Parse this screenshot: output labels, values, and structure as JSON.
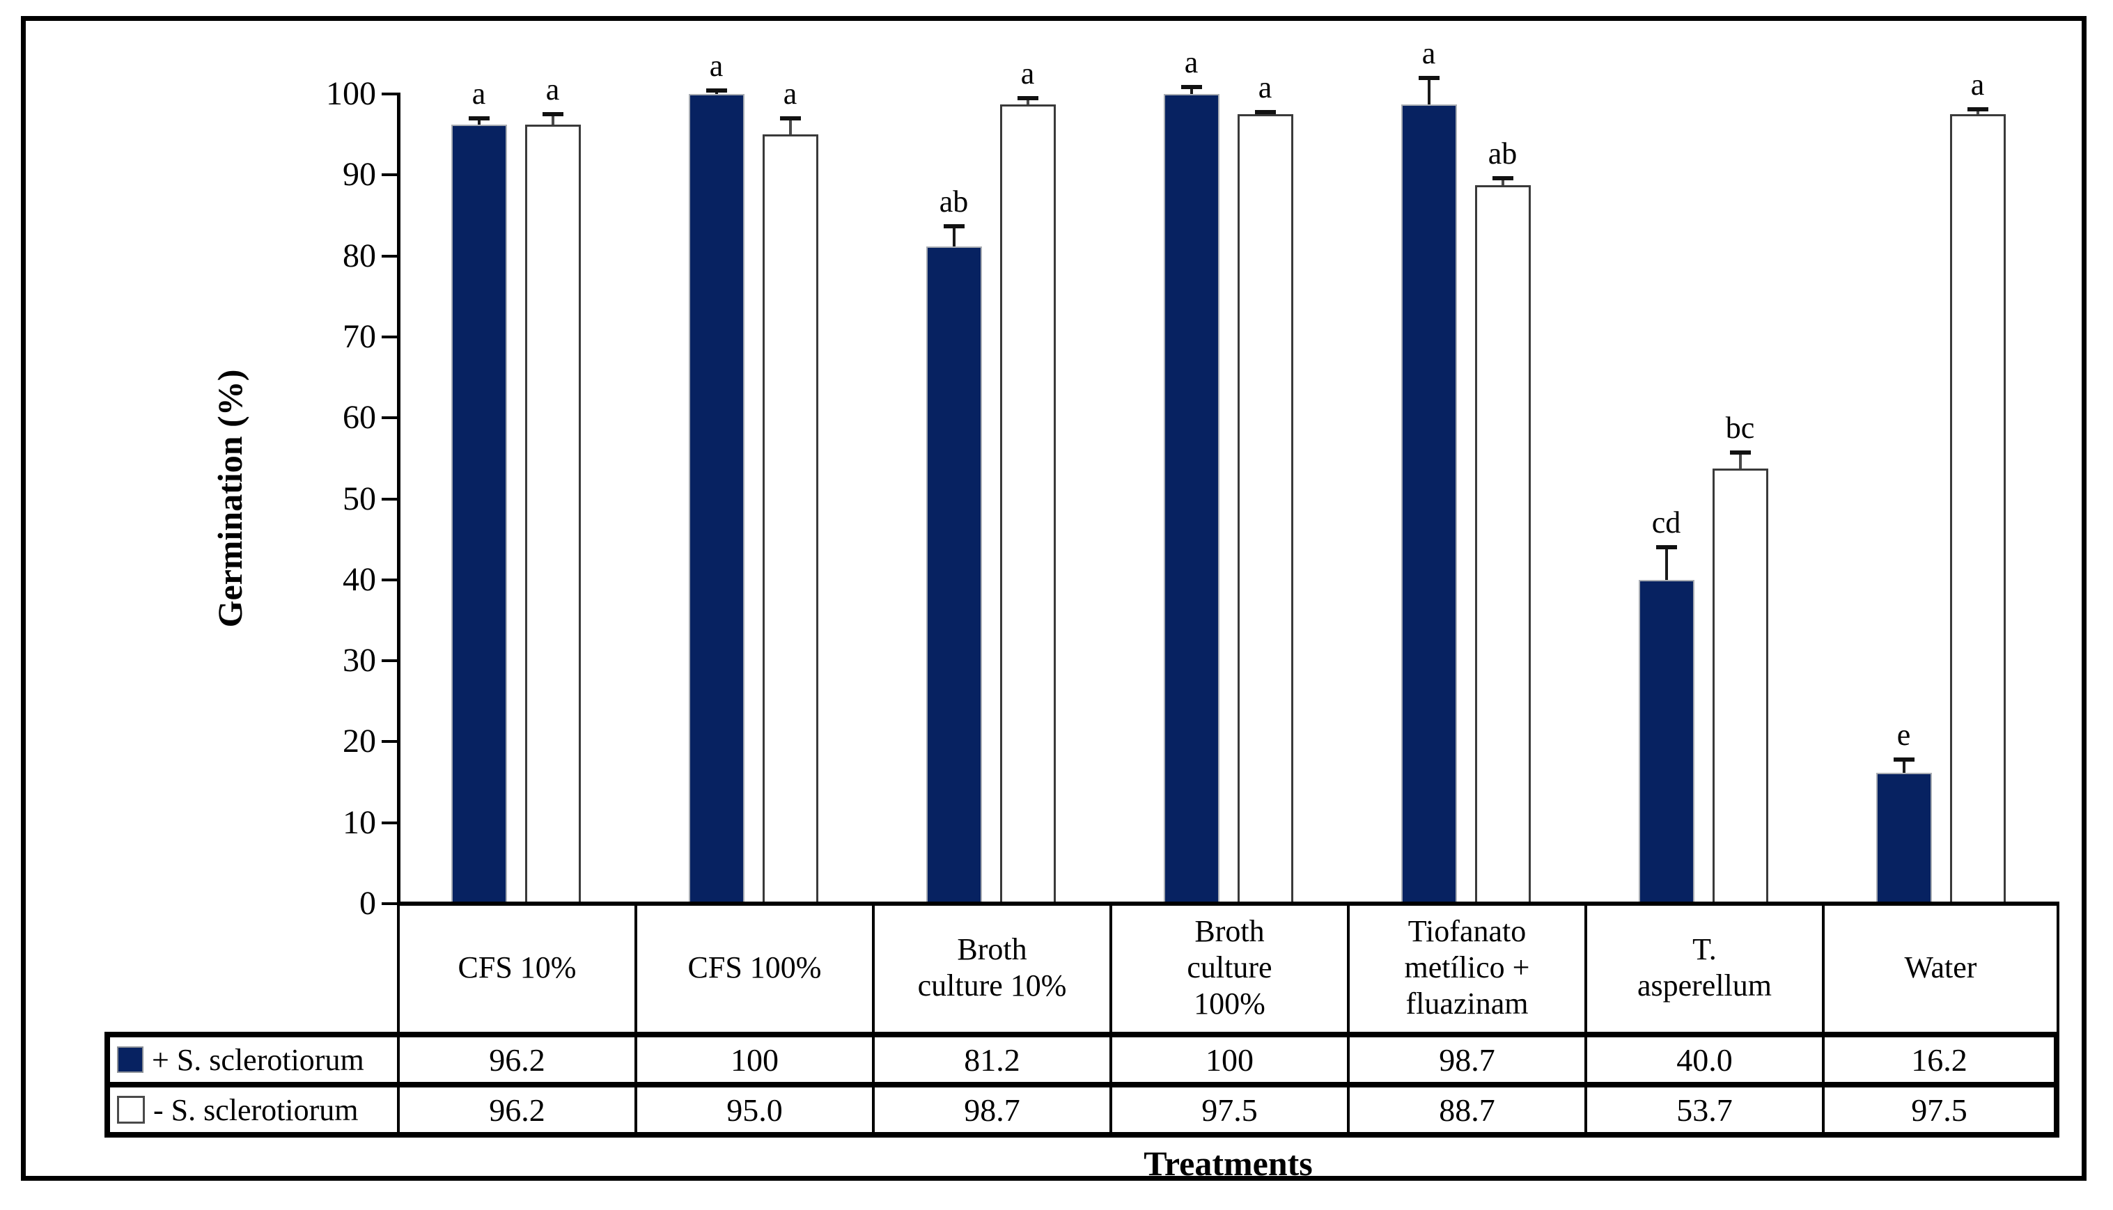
{
  "figure": {
    "background": "#ffffff",
    "frame_color": "#000000"
  },
  "chart_data": {
    "type": "bar",
    "title": "",
    "xlabel": "Treatments",
    "ylabel": "Germination (%)",
    "ylim": [
      0,
      100
    ],
    "yticks": [
      0,
      10,
      20,
      30,
      40,
      50,
      60,
      70,
      80,
      90,
      100
    ],
    "grid": false,
    "legend_position": "table-left-column",
    "bar_colors": {
      "navy": "#072261",
      "white": "#ffffff"
    },
    "categories": [
      "CFS 10%",
      "CFS 100%",
      "Broth culture 10%",
      "Broth culture 100%",
      "Tiofanato metílico + fluazinam",
      "T. asperellum",
      "Water"
    ],
    "category_lines": [
      "CFS 10%",
      "CFS 100%",
      "Broth\nculture 10%",
      "Broth\nculture\n100%",
      "Tiofanato\nmetílico +\nfluazinam",
      "T.\nasperellum",
      "Water"
    ],
    "series": [
      {
        "name": "+ S. sclerotiorum",
        "marker": "filled-navy-square",
        "color": "#072261",
        "values": [
          96.2,
          100,
          81.2,
          100,
          98.7,
          40.0,
          16.2
        ],
        "value_labels": [
          "96.2",
          "100",
          "81.2",
          "100",
          "98.7",
          "40.0",
          "16.2"
        ],
        "errors": [
          0.8,
          0.4,
          2.5,
          0.9,
          3.3,
          4.0,
          1.6
        ],
        "sig_letters": [
          "a",
          "a",
          "ab",
          "a",
          "a",
          "cd",
          "e"
        ]
      },
      {
        "name": "- S. sclerotiorum",
        "marker": "open-square",
        "color": "#ffffff",
        "values": [
          96.2,
          95.0,
          98.7,
          97.5,
          88.7,
          53.7,
          97.5
        ],
        "value_labels": [
          "96.2",
          "95.0",
          "98.7",
          "97.5",
          "88.7",
          "53.7",
          "97.5"
        ],
        "errors": [
          1.3,
          2.0,
          0.8,
          0.3,
          0.9,
          2.0,
          0.6
        ],
        "sig_letters": [
          "a",
          "a",
          "a",
          "a",
          "ab",
          "bc",
          "a"
        ]
      }
    ]
  }
}
